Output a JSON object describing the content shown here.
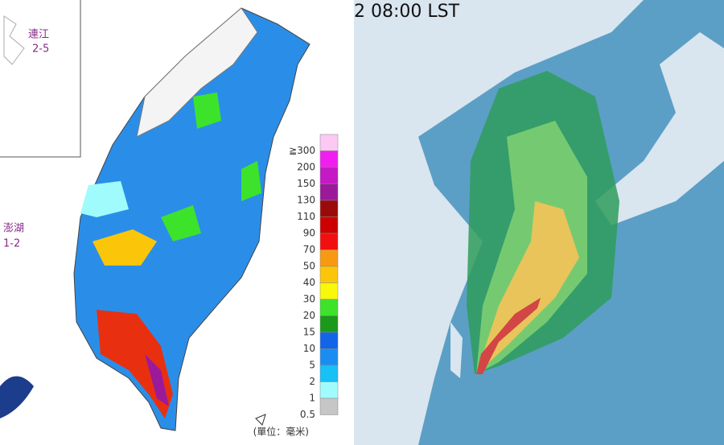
{
  "rain_map": {
    "islands": [
      {
        "name": "連江",
        "range": "2-5"
      },
      {
        "name": "澎湖",
        "range": "1-2"
      }
    ],
    "legend": [
      {
        "label": "≧300",
        "color": "#fbc9f4"
      },
      {
        "label": "200",
        "color": "#f01ff0"
      },
      {
        "label": "150",
        "color": "#c419c4"
      },
      {
        "label": "130",
        "color": "#9a1a9a"
      },
      {
        "label": "110",
        "color": "#9b0a0a"
      },
      {
        "label": "90",
        "color": "#cc0000"
      },
      {
        "label": "70",
        "color": "#f20f0f"
      },
      {
        "label": "50",
        "color": "#f79a12"
      },
      {
        "label": "40",
        "color": "#fbc609"
      },
      {
        "label": "30",
        "color": "#f8f80a"
      },
      {
        "label": "20",
        "color": "#3de32a"
      },
      {
        "label": "15",
        "color": "#1a9a1a"
      },
      {
        "label": "10",
        "color": "#1066e6"
      },
      {
        "label": "5",
        "color": "#1a8ef0"
      },
      {
        "label": "2",
        "color": "#17c0f5"
      },
      {
        "label": "1",
        "color": "#a0fcfc"
      },
      {
        "label": "0.5",
        "color": "#c6c6c6"
      }
    ],
    "unit": "(單位：毫米)"
  },
  "wind_map": {
    "time": "2 08:00 LST"
  }
}
